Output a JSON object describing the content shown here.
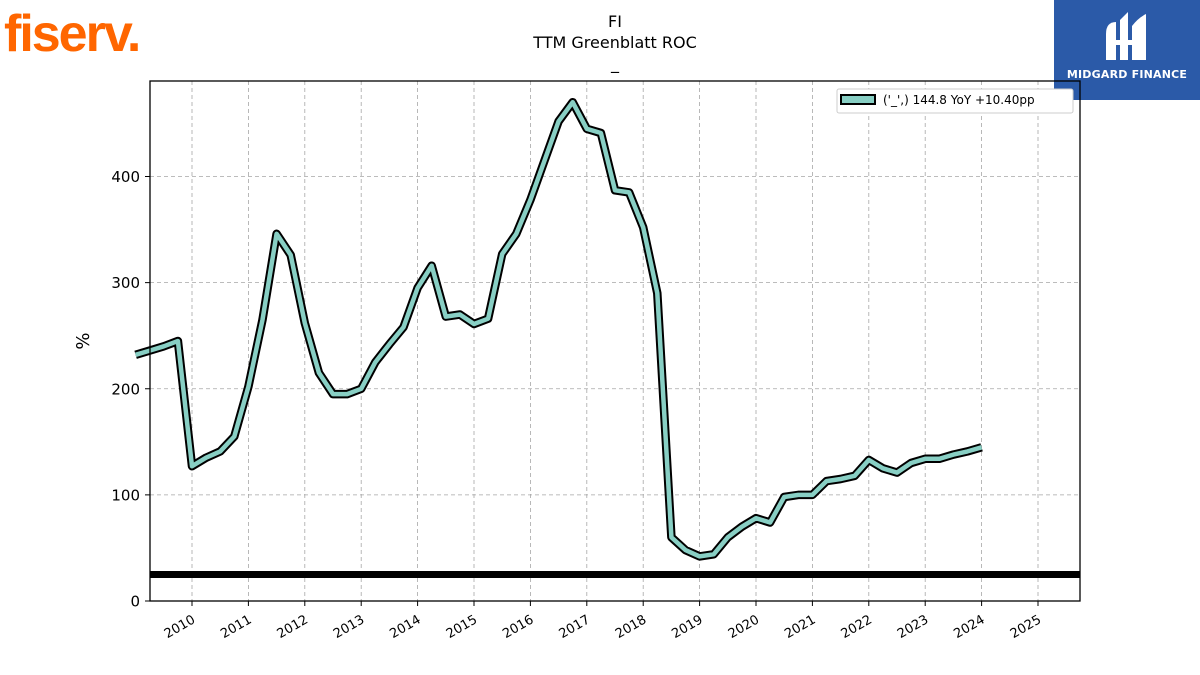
{
  "logos": {
    "left_text": "fiserv.",
    "left_color": "#ff6600",
    "right_text": "MIDGARD FINANCE",
    "right_bg": "#2b5aa8",
    "right_icon": "midgard-logo-icon"
  },
  "chart_data": {
    "type": "line",
    "title": "FI",
    "subtitle": "TTM Greenblatt ROC",
    "subsubtitle": "_",
    "ylabel": "%",
    "xlabel": "",
    "ylim": [
      0,
      490
    ],
    "yticks": [
      0,
      100,
      200,
      300,
      400
    ],
    "xticks": [
      "2010",
      "2011",
      "2012",
      "2013",
      "2014",
      "2015",
      "2016",
      "2017",
      "2018",
      "2019",
      "2020",
      "2021",
      "2022",
      "2023",
      "2024",
      "2025"
    ],
    "grid": true,
    "legend_position": "top-right",
    "line_color": "#88cfc4",
    "outline_color": "#000000",
    "reference_line": 25,
    "series": [
      {
        "name": "('_',) 144.8 YoY +10.40pp",
        "points": [
          [
            "2009-12",
            232
          ],
          [
            "2010-03",
            236
          ],
          [
            "2010-06",
            240
          ],
          [
            "2010-09",
            245
          ],
          [
            "2010-12",
            127
          ],
          [
            "2011-03",
            135
          ],
          [
            "2011-06",
            141
          ],
          [
            "2011-09",
            155
          ],
          [
            "2011-12",
            202
          ],
          [
            "2012-03",
            265
          ],
          [
            "2012-06",
            346
          ],
          [
            "2012-09",
            326
          ],
          [
            "2012-12",
            262
          ],
          [
            "2013-03",
            215
          ],
          [
            "2013-06",
            195
          ],
          [
            "2013-09",
            195
          ],
          [
            "2013-12",
            200
          ],
          [
            "2014-03",
            225
          ],
          [
            "2014-06",
            242
          ],
          [
            "2014-09",
            258
          ],
          [
            "2014-12",
            295
          ],
          [
            "2015-03",
            316
          ],
          [
            "2015-06",
            268
          ],
          [
            "2015-09",
            270
          ],
          [
            "2015-12",
            261
          ],
          [
            "2016-03",
            266
          ],
          [
            "2016-06",
            327
          ],
          [
            "2016-09",
            346
          ],
          [
            "2016-12",
            378
          ],
          [
            "2017-03",
            415
          ],
          [
            "2017-06",
            452
          ],
          [
            "2017-09",
            470
          ],
          [
            "2017-12",
            445
          ],
          [
            "2018-03",
            441
          ],
          [
            "2018-06",
            387
          ],
          [
            "2018-09",
            385
          ],
          [
            "2018-12",
            352
          ],
          [
            "2019-03",
            290
          ],
          [
            "2019-06",
            60
          ],
          [
            "2019-09",
            48
          ],
          [
            "2019-12",
            42
          ],
          [
            "2020-03",
            44
          ],
          [
            "2020-06",
            60
          ],
          [
            "2020-09",
            70
          ],
          [
            "2020-12",
            78
          ],
          [
            "2021-03",
            74
          ],
          [
            "2021-06",
            98
          ],
          [
            "2021-09",
            100
          ],
          [
            "2021-12",
            100
          ],
          [
            "2022-03",
            113
          ],
          [
            "2022-06",
            115
          ],
          [
            "2022-09",
            118
          ],
          [
            "2022-12",
            133
          ],
          [
            "2023-03",
            125
          ],
          [
            "2023-06",
            121
          ],
          [
            "2023-09",
            130
          ],
          [
            "2023-12",
            134
          ],
          [
            "2024-03",
            134
          ],
          [
            "2024-06",
            138
          ],
          [
            "2024-09",
            141
          ],
          [
            "2024-12",
            144.8
          ]
        ]
      }
    ]
  }
}
